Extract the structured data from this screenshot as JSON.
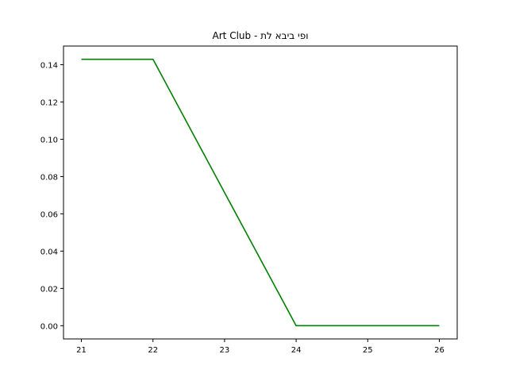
{
  "chart_data": {
    "type": "line",
    "title": "Art Club - ופי ביבא לת",
    "xlabel": "",
    "ylabel": "",
    "x": [
      21,
      22,
      23,
      24,
      25,
      26
    ],
    "series": [
      {
        "values": [
          0.1429,
          0.1429,
          0.0714,
          0.0,
          0.0,
          0.0
        ],
        "color": "#008000"
      }
    ],
    "xlim": [
      20.75,
      26.25
    ],
    "ylim": [
      -0.0071,
      0.15
    ],
    "xticks": [
      "21",
      "22",
      "23",
      "24",
      "25",
      "26"
    ],
    "yticks": [
      "0.00",
      "0.02",
      "0.04",
      "0.06",
      "0.08",
      "0.10",
      "0.12",
      "0.14"
    ],
    "grid": false,
    "legend": "none"
  }
}
